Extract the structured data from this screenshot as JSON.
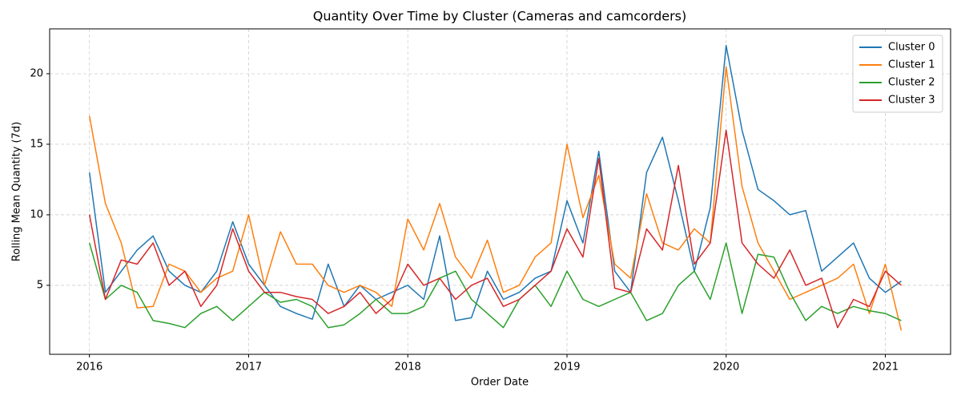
{
  "chart_data": {
    "type": "line",
    "title": "Quantity Over Time by Cluster (Cameras and camcorders)",
    "x_label": "Order Date",
    "y_label": "Rolling Mean Quantity (7d)",
    "x": [
      2016.0,
      2016.1,
      2016.2,
      2016.3,
      2016.4,
      2016.5,
      2016.6,
      2016.7,
      2016.8,
      2016.9,
      2017.0,
      2017.1,
      2017.2,
      2017.3,
      2017.4,
      2017.5,
      2017.6,
      2017.7,
      2017.8,
      2017.9,
      2018.0,
      2018.1,
      2018.2,
      2018.3,
      2018.4,
      2018.5,
      2018.6,
      2018.7,
      2018.8,
      2018.9,
      2019.0,
      2019.1,
      2019.2,
      2019.3,
      2019.4,
      2019.5,
      2019.6,
      2019.7,
      2019.8,
      2019.9,
      2020.0,
      2020.1,
      2020.2,
      2020.3,
      2020.4,
      2020.5,
      2020.6,
      2020.7,
      2020.8,
      2020.9,
      2021.0,
      2021.1
    ],
    "series": [
      {
        "name": "Cluster 0",
        "color": "#1f77b4",
        "values": [
          13,
          4.5,
          6,
          7.5,
          8.5,
          6,
          5,
          4.5,
          6,
          9.5,
          6.5,
          5,
          3.5,
          3,
          2.6,
          6.5,
          3.5,
          5,
          4,
          4.5,
          5,
          4,
          8.5,
          2.5,
          2.7,
          6,
          4,
          4.5,
          5.5,
          6,
          11,
          8,
          14.5,
          6,
          4.5,
          13,
          15.5,
          11,
          6,
          10.5,
          22,
          16,
          11.8,
          11,
          10,
          10.3,
          6,
          7,
          8,
          5.5,
          4.5,
          5.3
        ]
      },
      {
        "name": "Cluster 1",
        "color": "#ff7f0e",
        "values": [
          17,
          10.8,
          8,
          3.4,
          3.5,
          6.5,
          6,
          4.5,
          5.5,
          6,
          10,
          5,
          8.8,
          6.5,
          6.5,
          5,
          4.5,
          5,
          4.5,
          3.5,
          9.7,
          7.5,
          10.8,
          7,
          5.5,
          8.2,
          4.5,
          5,
          7,
          8,
          15,
          9.8,
          12.8,
          6.5,
          5.5,
          11.5,
          8,
          7.5,
          9,
          8,
          20.5,
          12,
          8,
          6,
          4,
          4.5,
          5,
          5.5,
          6.5,
          3,
          6.5,
          1.8
        ]
      },
      {
        "name": "Cluster 2",
        "color": "#2ca02c",
        "values": [
          8,
          4,
          5,
          4.5,
          2.5,
          2.3,
          2,
          3,
          3.5,
          2.5,
          3.5,
          4.5,
          3.8,
          4,
          3.5,
          2,
          2.2,
          3,
          4,
          3,
          3,
          3.5,
          5.5,
          6,
          4,
          3,
          2,
          4,
          5,
          3.5,
          6,
          4,
          3.5,
          4,
          4.5,
          2.5,
          3,
          5,
          6,
          4,
          8,
          3,
          7.2,
          7,
          4.5,
          2.5,
          3.5,
          3,
          3.5,
          3.2,
          3,
          2.5
        ]
      },
      {
        "name": "Cluster 3",
        "color": "#d62728",
        "values": [
          10,
          4,
          6.8,
          6.5,
          8,
          5,
          6,
          3.5,
          5,
          9,
          6,
          4.5,
          4.5,
          4.2,
          4,
          3,
          3.5,
          4.5,
          3,
          4,
          6.5,
          5,
          5.5,
          4,
          5,
          5.5,
          3.5,
          4,
          5,
          6,
          9,
          7,
          14,
          4.8,
          4.5,
          9,
          7.5,
          13.5,
          6.5,
          8,
          16,
          8,
          6.5,
          5.5,
          7.5,
          5,
          5.5,
          2,
          4,
          3.5,
          6,
          5
        ]
      }
    ],
    "xlim": [
      2015.75,
      2021.41
    ],
    "xticks": [
      2016,
      2017,
      2018,
      2019,
      2020,
      2021
    ],
    "ylim": [
      0.11,
      23.18
    ],
    "yticks": [
      5,
      10,
      15,
      20
    ],
    "grid": true,
    "legend": "upper-right"
  }
}
